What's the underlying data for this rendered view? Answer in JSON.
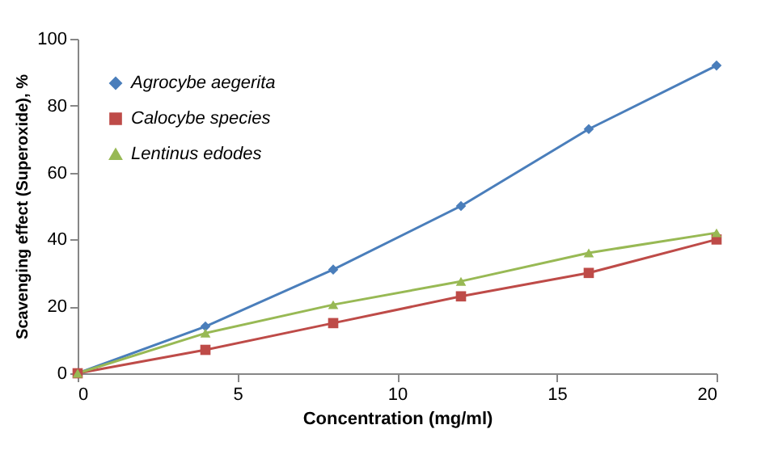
{
  "chart_data": {
    "type": "line",
    "xlabel": "Concentration (mg/ml)",
    "ylabel": "Scavenging effect (Superoxide), %",
    "x": [
      0,
      4,
      8,
      12,
      16,
      20
    ],
    "series": [
      {
        "name": "Agrocybe aegerita",
        "color": "#4a7ebb",
        "marker": "diamond",
        "values": [
          0,
          14,
          31,
          50,
          73,
          92
        ]
      },
      {
        "name": "Calocybe species",
        "color": "#be4b48",
        "marker": "square",
        "values": [
          0,
          7,
          15,
          23,
          30,
          40
        ]
      },
      {
        "name": "Lentinus edodes",
        "color": "#98b954",
        "marker": "triangle",
        "values": [
          0,
          12,
          20.5,
          27.5,
          36,
          42
        ]
      }
    ],
    "xlim": [
      0,
      20
    ],
    "xticks": [
      0,
      5,
      10,
      15,
      20
    ],
    "ylim": [
      0,
      100
    ],
    "yticks": [
      0,
      20,
      40,
      60,
      80,
      100
    ],
    "grid": false,
    "legend": "top left",
    "line_style": "solid"
  }
}
